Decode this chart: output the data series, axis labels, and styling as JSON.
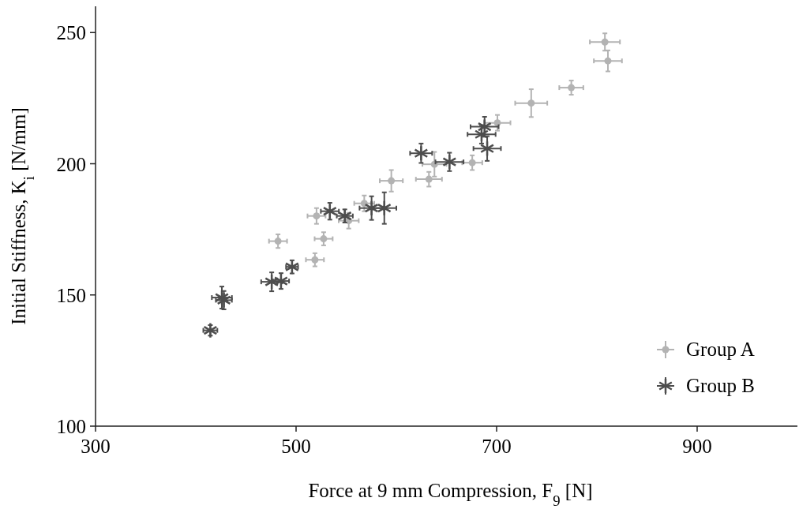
{
  "chart_data": {
    "type": "scatter",
    "xlabel": "Force at 9 mm Compression, F$_{9}$ [N]",
    "ylabel": "Initial Stiffness, K$_{i}$ [N/mm]",
    "xlim": [
      300,
      1000
    ],
    "ylim": [
      100,
      260
    ],
    "xticks": [
      300,
      500,
      700,
      900
    ],
    "yticks": [
      100,
      150,
      200,
      250
    ],
    "grid": false,
    "legend": "bottom right",
    "series": [
      {
        "name": "Group A",
        "color": "#b3b3b3",
        "marker": "circle",
        "x": [
          808,
          811,
          774.5,
          734.5,
          700.8,
          675.7,
          638,
          632.5,
          595,
          568,
          552.5,
          520.4,
          482,
          527.5,
          518.8
        ],
        "values": [
          246.4,
          239.2,
          229,
          223.1,
          215.6,
          200.4,
          199.8,
          194.1,
          193.5,
          184.9,
          178.3,
          180.1,
          170.5,
          171.4,
          163.4
        ],
        "errors": [
          3.3,
          4,
          2.7,
          5.3,
          3,
          2.8,
          4.7,
          2.8,
          4.1,
          3,
          3,
          3,
          2.6,
          2.5,
          2.5
        ],
        "xerrors": [
          15,
          14,
          12,
          16,
          13,
          10,
          12,
          13,
          11.5,
          10,
          10,
          9,
          9,
          9,
          9
        ]
      },
      {
        "name": "Group B",
        "color": "#4d4d4d",
        "marker": "cross",
        "x": [
          414.5,
          426,
          428,
          475.7,
          485,
          496,
          533.7,
          548.6,
          575.3,
          588,
          624.7,
          653,
          688,
          685,
          690.6
        ],
        "values": [
          136.5,
          149,
          148,
          155,
          155.3,
          160.7,
          181.9,
          180.1,
          183.1,
          183.1,
          204,
          200.7,
          214.1,
          211.2,
          205.8
        ],
        "errors": [
          2,
          4.2,
          3.5,
          3.6,
          3,
          2.5,
          3.2,
          2.5,
          4.5,
          6,
          3.7,
          3.5,
          3.8,
          3.5,
          4.7
        ],
        "xerrors": [
          7,
          10,
          8,
          10.5,
          8,
          6,
          9,
          8,
          12,
          12,
          11,
          14,
          14,
          14,
          13.7
        ]
      }
    ]
  }
}
